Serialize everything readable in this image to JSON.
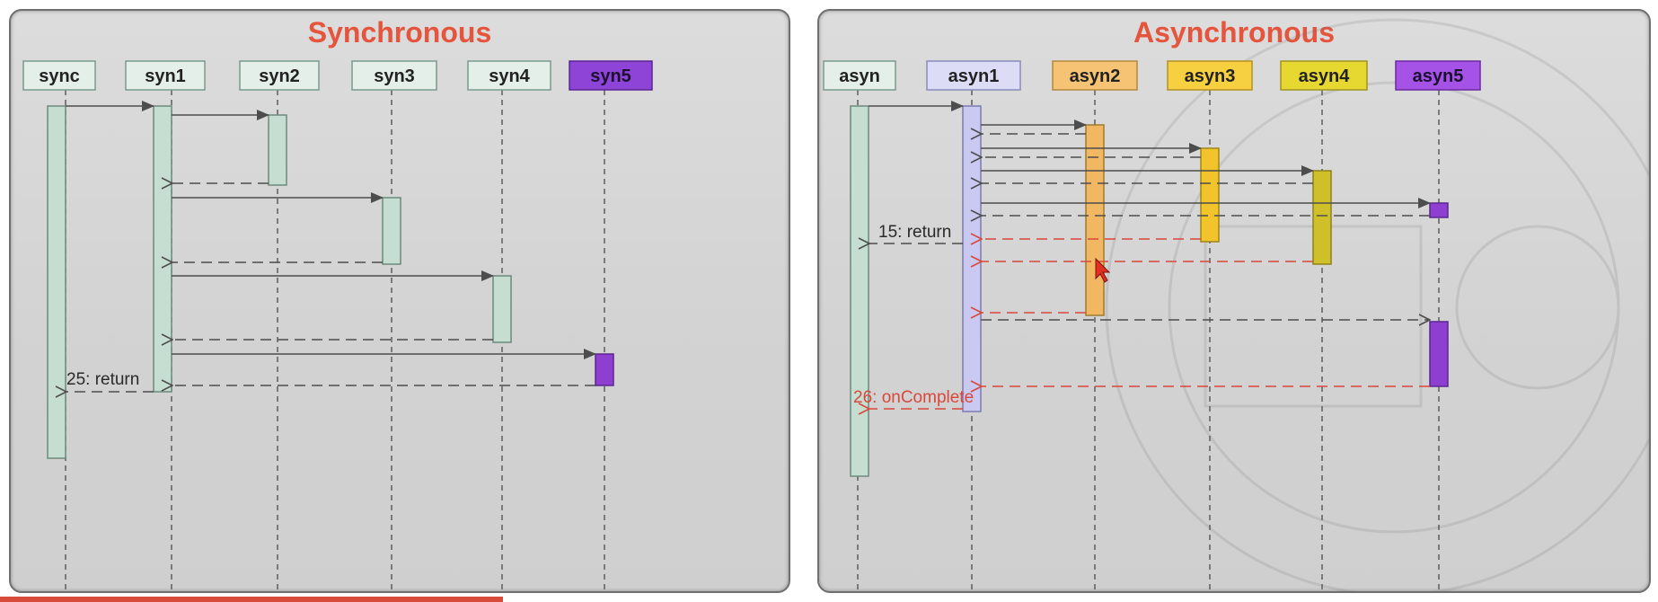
{
  "sync_panel": {
    "title": "Synchronous",
    "participants": [
      {
        "label": "sync",
        "fill": "#e4efea"
      },
      {
        "label": "syn1",
        "fill": "#e4efea"
      },
      {
        "label": "syn2",
        "fill": "#e4efea"
      },
      {
        "label": "syn3",
        "fill": "#e4efea"
      },
      {
        "label": "syn4",
        "fill": "#e4efea"
      },
      {
        "label": "syn5",
        "fill": "#8e44d6"
      }
    ],
    "return_label": "25: return"
  },
  "async_panel": {
    "title": "Asynchronous",
    "participants": [
      {
        "label": "asyn",
        "fill": "#e4efea"
      },
      {
        "label": "asyn1",
        "fill": "#dcdcf6"
      },
      {
        "label": "asyn2",
        "fill": "#f5c373"
      },
      {
        "label": "asyn3",
        "fill": "#f6d040"
      },
      {
        "label": "asyn4",
        "fill": "#e6d830"
      },
      {
        "label": "asyn5",
        "fill": "#a552e6"
      }
    ],
    "return_label": "15: return",
    "complete_label": "26: onComplete"
  },
  "colors": {
    "title": "#e5543d",
    "message_line": "#4d4d4d",
    "async_return_line": "#d9483b",
    "activation_green": "#c6ddd2",
    "activation_purple": "#8e3fd0"
  }
}
